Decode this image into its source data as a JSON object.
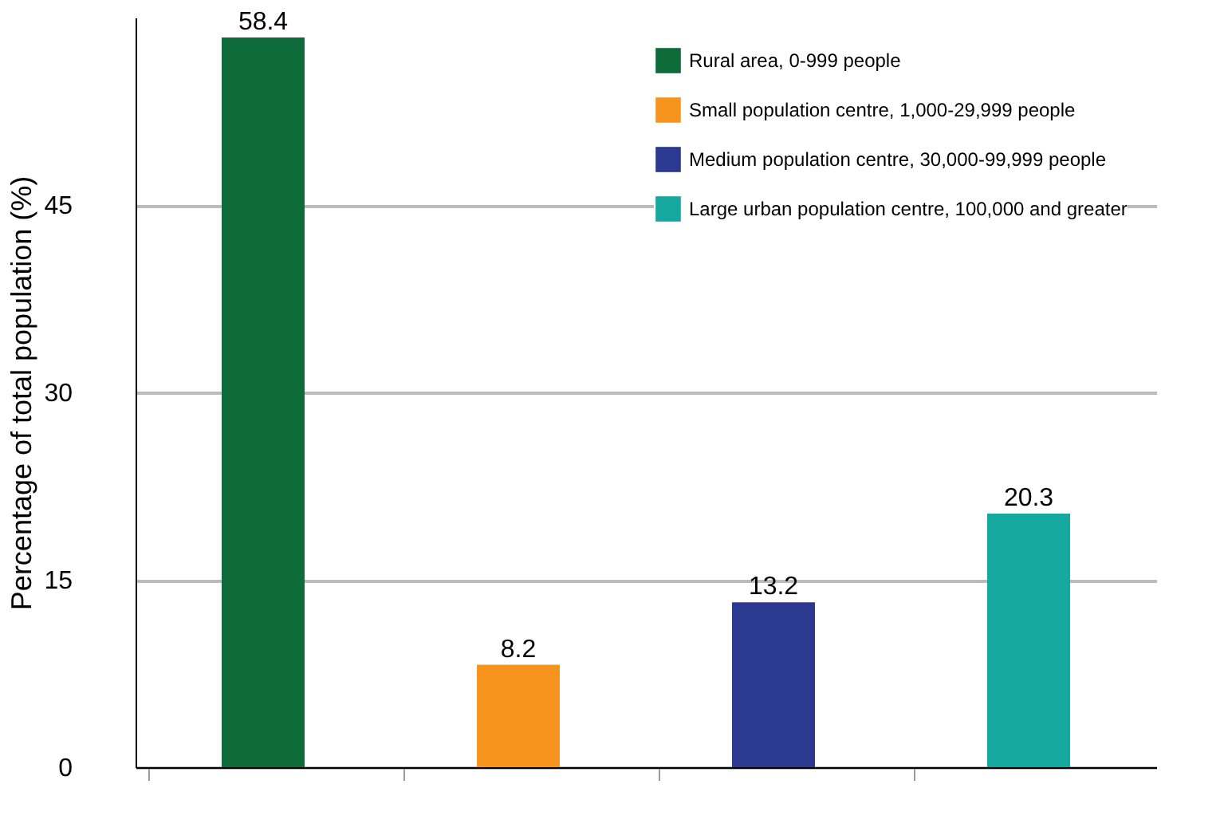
{
  "chart_data": {
    "type": "bar",
    "ylabel": "Percentage of total population (%)",
    "categories": [
      null,
      null,
      null,
      null
    ],
    "series": [
      {
        "name": "Rural area, 0-999 people",
        "color": "#0e6b3a",
        "values": [
          58.4,
          null,
          null,
          null
        ]
      },
      {
        "name": "Small population centre, 1,000-29,999 people",
        "color": "#f7941d",
        "values": [
          null,
          8.2,
          null,
          null
        ]
      },
      {
        "name": "Medium population centre, 30,000-99,999 people",
        "color": "#2b3990",
        "values": [
          null,
          null,
          13.2,
          null
        ]
      },
      {
        "name": "Large urban population centre, 100,000 and greater",
        "color": "#14a89e",
        "values": [
          null,
          null,
          null,
          20.3
        ]
      }
    ],
    "ylim": [
      0,
      60
    ],
    "yticks": [
      0,
      15,
      30,
      45
    ],
    "grid": "y",
    "legend": "top right",
    "data_labels": true,
    "tick_labels": "y"
  }
}
